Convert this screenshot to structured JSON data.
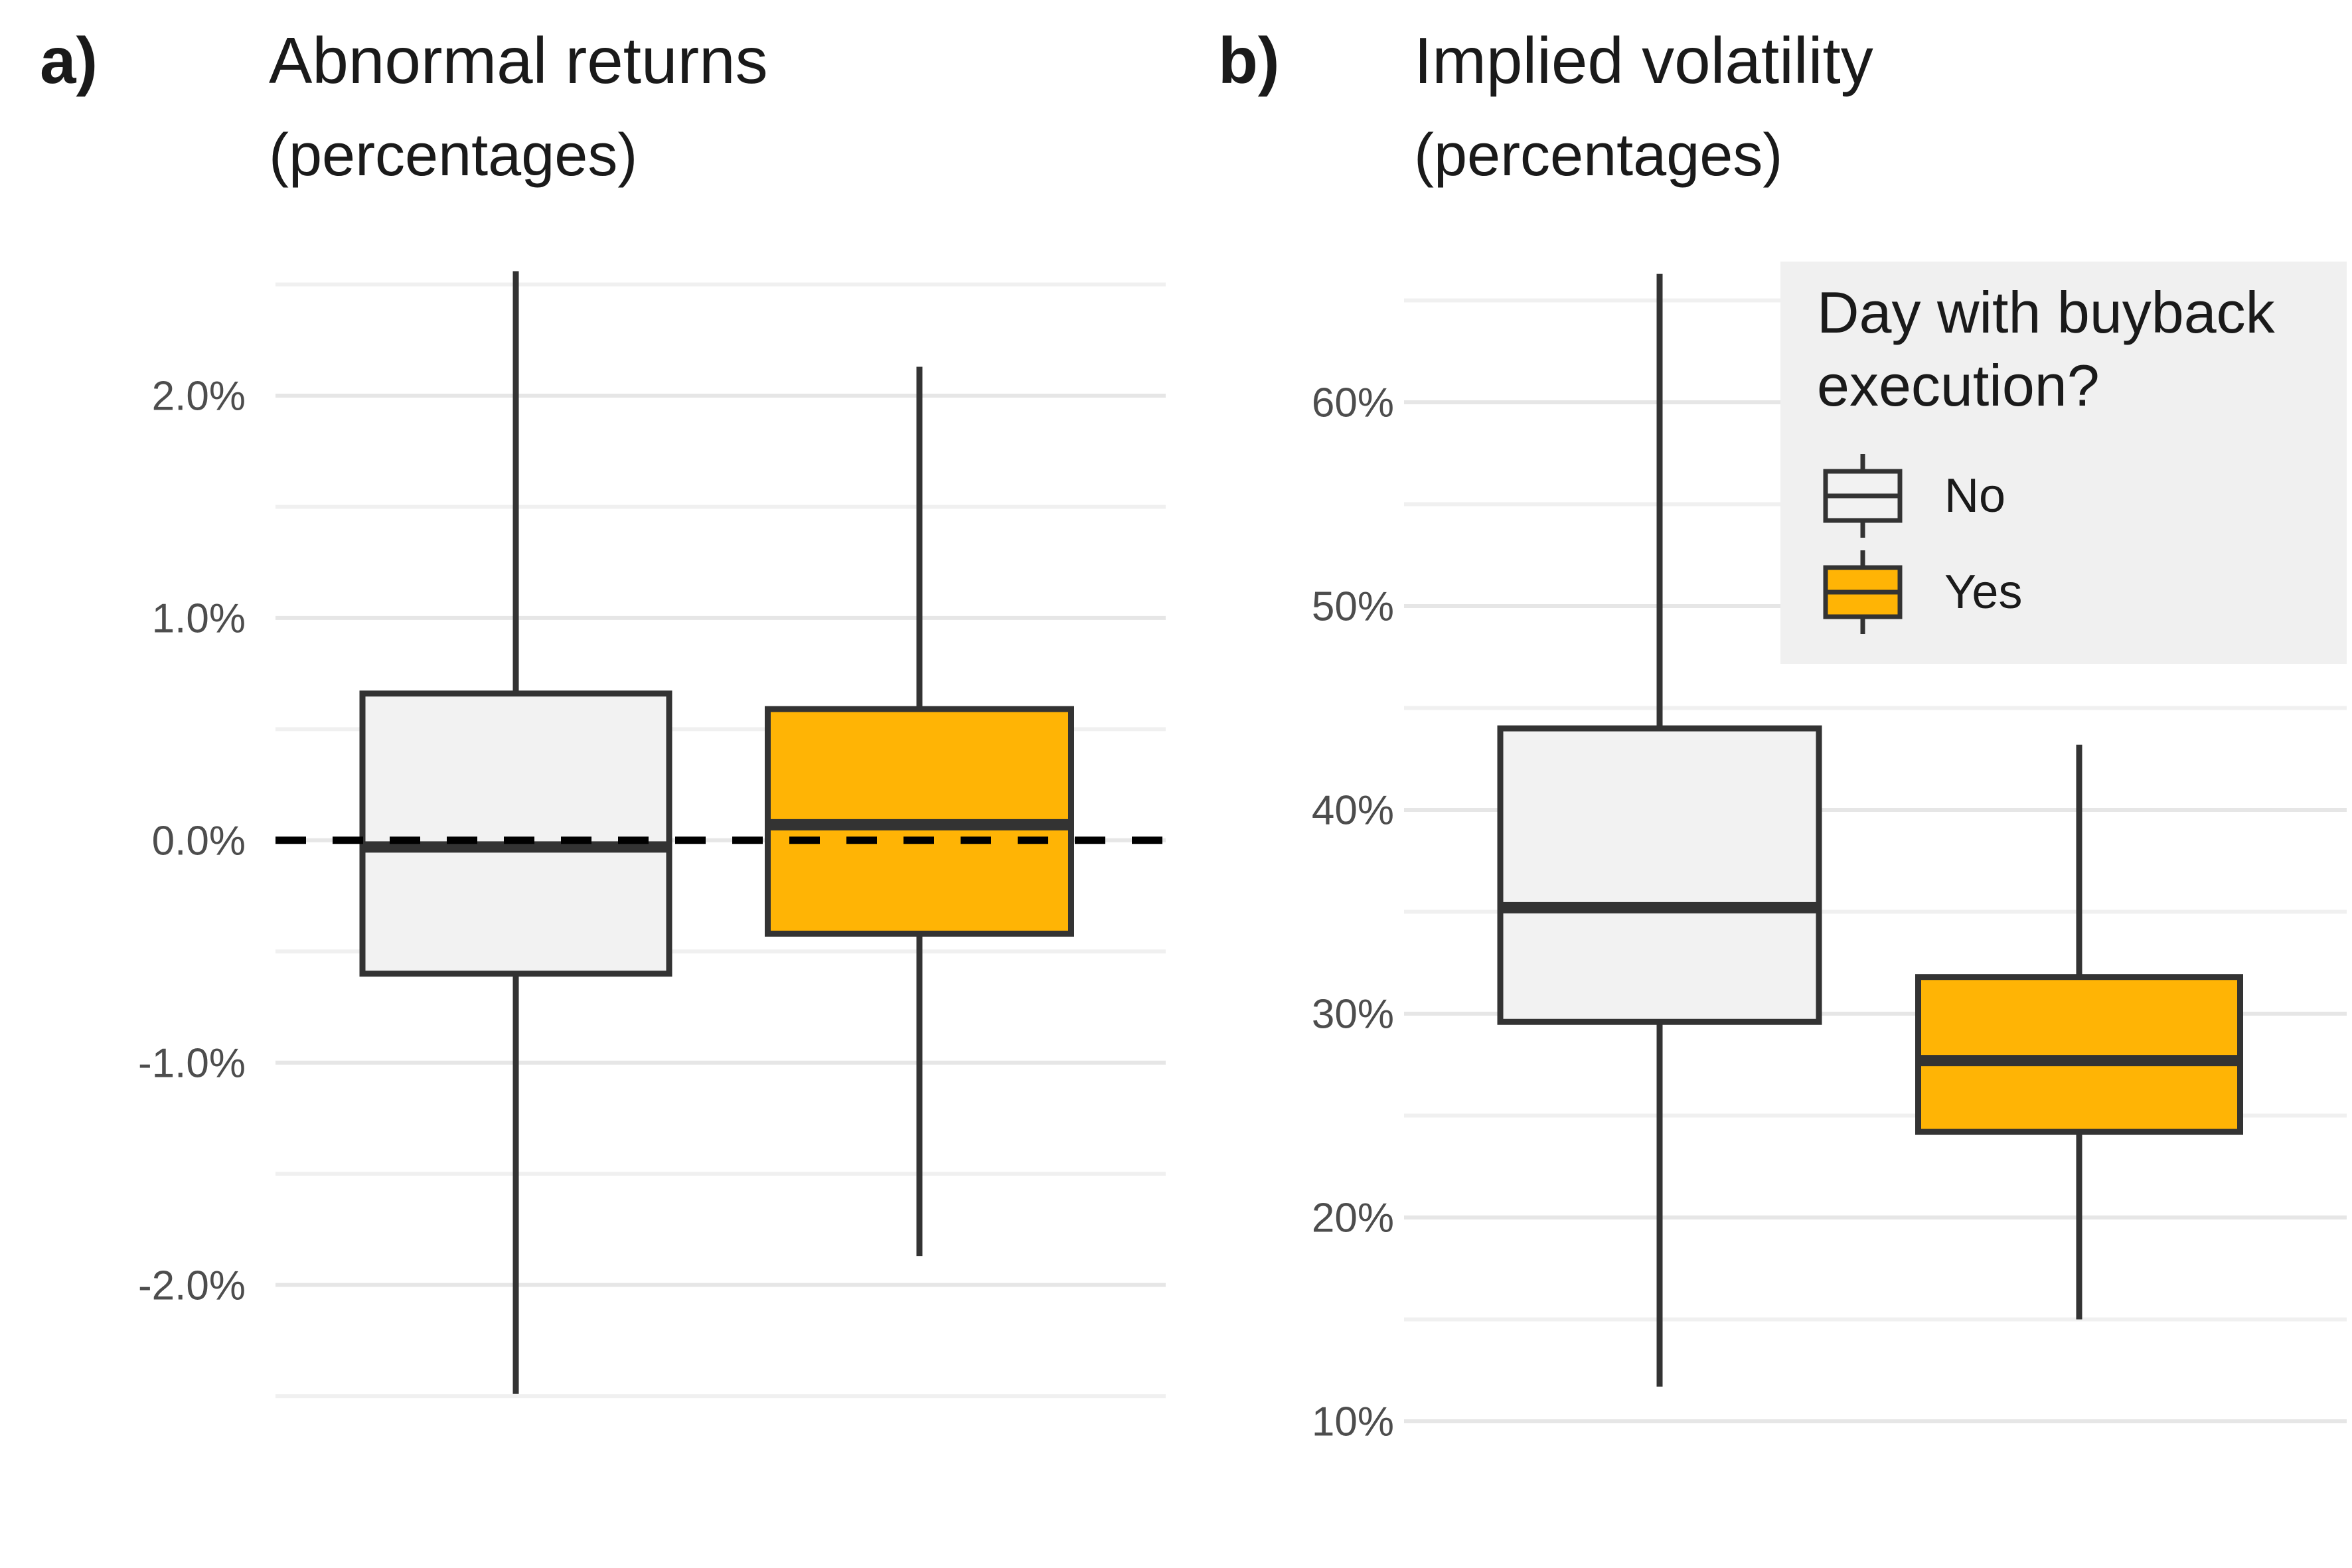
{
  "figure": {
    "background": "#FFFFFF"
  },
  "chart_data": [
    {
      "type": "boxplot",
      "panel_tag": "a)",
      "title": "Abnormal returns",
      "subtitle": "(percentages)",
      "orientation": "vertical",
      "grid": true,
      "y_axis": {
        "unit": "percent",
        "tick_labels": [
          "2.0%",
          "1.0%",
          "0.0%",
          "-1.0%",
          "-2.0%"
        ],
        "tick_values": [
          2,
          1,
          0,
          -1,
          -2
        ],
        "minor_tick_values": [
          2.5,
          1.5,
          0.5,
          -0.5,
          -1.5,
          -2.5
        ],
        "range": [
          -2.67,
          2.63
        ]
      },
      "reference_line": {
        "value": 0,
        "style": "dashed",
        "color": "#000000"
      },
      "series": [
        {
          "name": "No",
          "min": -2.49,
          "q1": -0.6,
          "median": -0.03,
          "q3": 0.66,
          "max": 2.56
        },
        {
          "name": "Yes",
          "min": -1.87,
          "q1": -0.42,
          "median": 0.07,
          "q3": 0.59,
          "max": 2.13
        }
      ]
    },
    {
      "type": "boxplot",
      "panel_tag": "b)",
      "title": "Implied volatility",
      "subtitle": "(percentages)",
      "orientation": "vertical",
      "grid": true,
      "legend_position": "inside-top-right",
      "y_axis": {
        "unit": "percent",
        "tick_labels": [
          "60%",
          "50%",
          "40%",
          "30%",
          "20%",
          "10%"
        ],
        "tick_values": [
          60,
          50,
          40,
          30,
          20,
          10
        ],
        "minor_tick_values": [
          65,
          55,
          45,
          35,
          25,
          15
        ],
        "range": [
          7.1,
          67.2
        ]
      },
      "series": [
        {
          "name": "No",
          "min": 11.7,
          "q1": 29.6,
          "median": 35.2,
          "q3": 44.0,
          "max": 66.3
        },
        {
          "name": "Yes",
          "min": 15.0,
          "q1": 24.2,
          "median": 27.7,
          "q3": 31.8,
          "max": 43.2
        }
      ]
    }
  ],
  "legend": {
    "title": "Day with buyback execution?",
    "items": [
      {
        "label": "No",
        "fill": "#F2F2F2"
      },
      {
        "label": "Yes",
        "fill": "#FFB405"
      }
    ]
  },
  "colors": {
    "accent_orange": "#FFB405",
    "box_no_fill": "#F2F2F2",
    "box_border": "#333333",
    "grid_major": "#E6E6E6",
    "grid_minor": "#F0F0F0",
    "tick_label": "#4D4D4D",
    "text": "#1A1A1A",
    "legend_bg": "#F0F0F0",
    "reference_line": "#000000",
    "background": "#FFFFFF"
  }
}
